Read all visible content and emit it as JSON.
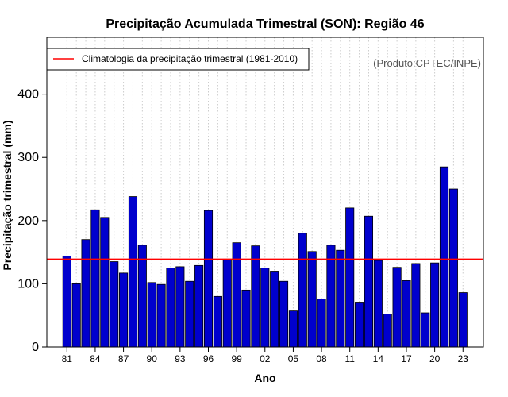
{
  "chart_data": {
    "type": "bar",
    "title": "Precipitação Acumulada Trimestral (SON): Região 46",
    "xlabel": "Ano",
    "ylabel": "Precipitação trimestral (mm)",
    "ylim": [
      0,
      490
    ],
    "yticks": [
      0,
      100,
      200,
      300,
      400
    ],
    "categories": [
      "81",
      "82",
      "83",
      "84",
      "85",
      "86",
      "87",
      "88",
      "89",
      "90",
      "91",
      "92",
      "93",
      "94",
      "95",
      "96",
      "97",
      "98",
      "99",
      "00",
      "01",
      "02",
      "03",
      "04",
      "05",
      "06",
      "07",
      "08",
      "09",
      "10",
      "11",
      "12",
      "13",
      "14",
      "15",
      "16",
      "17",
      "18",
      "19",
      "20",
      "21",
      "22",
      "23"
    ],
    "xtick_labels": [
      "81",
      "84",
      "87",
      "90",
      "93",
      "96",
      "99",
      "02",
      "05",
      "08",
      "11",
      "14",
      "17",
      "20",
      "23"
    ],
    "values": [
      144,
      100,
      170,
      217,
      205,
      135,
      117,
      238,
      161,
      102,
      99,
      125,
      127,
      104,
      129,
      216,
      80,
      139,
      165,
      90,
      160,
      125,
      120,
      104,
      57,
      180,
      151,
      76,
      161,
      153,
      220,
      71,
      207,
      137,
      52,
      126,
      105,
      132,
      54,
      133,
      285,
      250,
      86
    ],
    "bar_color": "#0000CD",
    "reference_line": {
      "label": "Climatologia da precipitação trimestral (1981-2010)",
      "value": 139,
      "color": "#FF0000"
    },
    "grid": "vertical dotted",
    "legend_position": "top-left",
    "credit": "(Produto:CPTEC/INPE)"
  }
}
